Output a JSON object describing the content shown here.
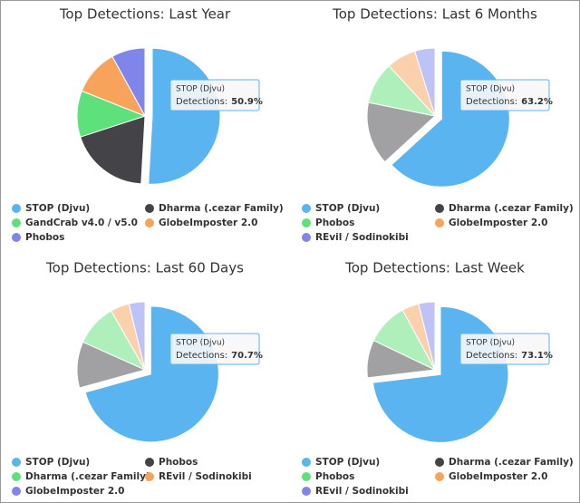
{
  "chart_data": [
    {
      "type": "pie",
      "title": "Top Detections: Last Year",
      "categories": [
        "STOP (Djvu)",
        "Dharma (.cezar Family)",
        "GandCrab v4.0 / v5.0",
        "GlobeImposter 2.0",
        "Phobos"
      ],
      "values": [
        50.9,
        19.1,
        11,
        11,
        8
      ],
      "value_labels": [
        "50.9%",
        null,
        null,
        null,
        null
      ],
      "colors": [
        "#5ab4ef",
        "#434348",
        "#5ee07a",
        "#f7a35c",
        "#8085e9"
      ],
      "tooltip_label": "Detections:",
      "highlighted": 0,
      "faded": false
    },
    {
      "type": "pie",
      "title": "Top Detections: Last 6 Months",
      "categories": [
        "STOP (Djvu)",
        "Dharma (.cezar Family)",
        "Phobos",
        "GlobeImposter 2.0",
        "REvil / Sodinokibi"
      ],
      "values": [
        63.2,
        15,
        10,
        7,
        4.8
      ],
      "value_labels": [
        "63.2%",
        null,
        null,
        null,
        null
      ],
      "colors": [
        "#5ab4ef",
        "#434348",
        "#5ee07a",
        "#f7a35c",
        "#8085e9"
      ],
      "tooltip_label": "Detections:",
      "highlighted": 0,
      "faded": true
    },
    {
      "type": "pie",
      "title": "Top Detections: Last 60 Days",
      "categories": [
        "STOP (Djvu)",
        "Phobos",
        "Dharma (.cezar Family)",
        "REvil / Sodinokibi",
        "GlobeImposter 2.0"
      ],
      "values": [
        70.7,
        11,
        10,
        4.5,
        3.8
      ],
      "value_labels": [
        "70.7%",
        null,
        null,
        null,
        null
      ],
      "colors": [
        "#5ab4ef",
        "#434348",
        "#5ee07a",
        "#f7a35c",
        "#8085e9"
      ],
      "tooltip_label": "Detections:",
      "highlighted": 0,
      "faded": true
    },
    {
      "type": "pie",
      "title": "Top Detections: Last Week",
      "categories": [
        "STOP (Djvu)",
        "Dharma (.cezar Family)",
        "Phobos",
        "GlobeImposter 2.0",
        "REvil / Sodinokibi"
      ],
      "values": [
        73.1,
        9,
        10,
        4,
        3.9
      ],
      "value_labels": [
        "73.1%",
        null,
        null,
        null,
        null
      ],
      "colors": [
        "#5ab4ef",
        "#434348",
        "#5ee07a",
        "#f7a35c",
        "#8085e9"
      ],
      "tooltip_label": "Detections:",
      "highlighted": 0,
      "faded": true
    }
  ]
}
